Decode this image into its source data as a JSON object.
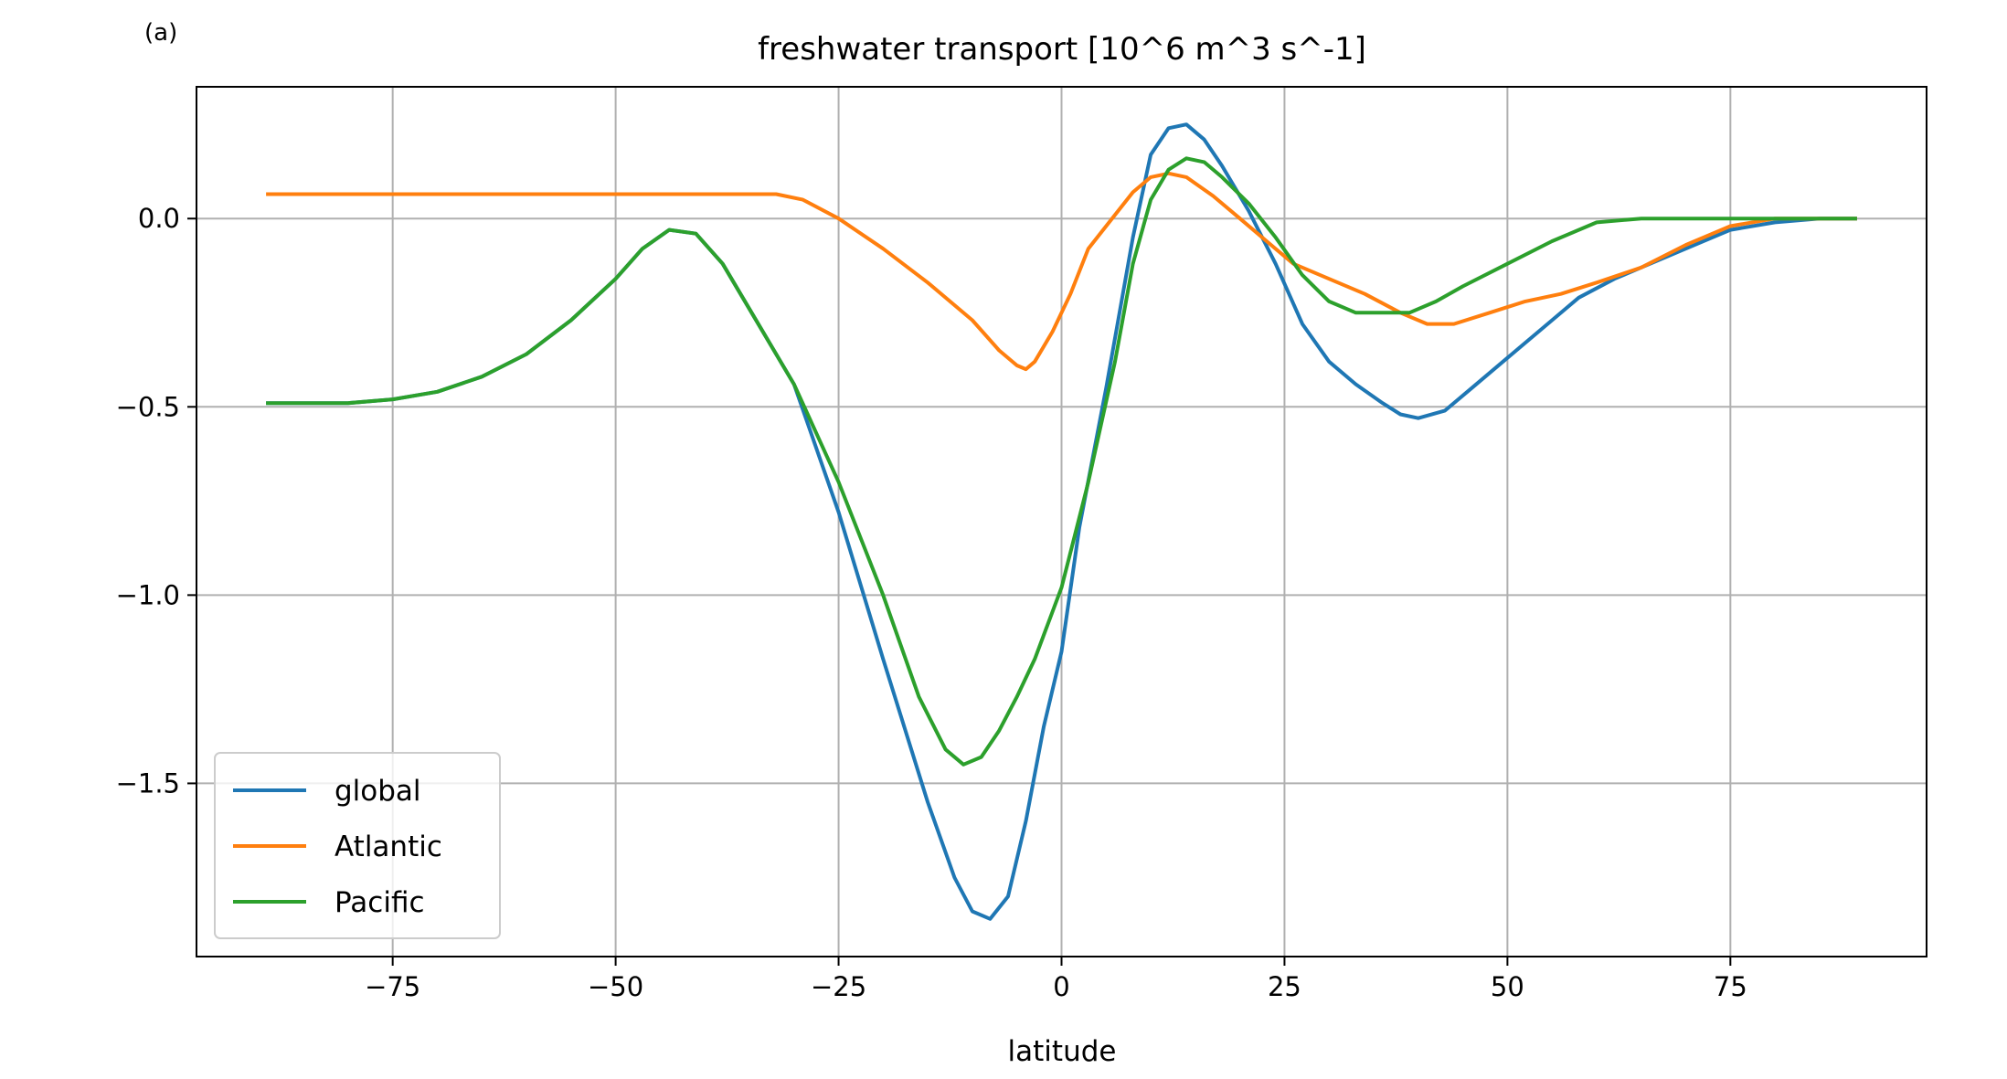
{
  "chart_data": {
    "type": "line",
    "panel_label": "(a)",
    "title": "freshwater transport [10^6 m^3 s^-1]",
    "xlabel": "latitude",
    "ylabel": "",
    "xlim": [
      -97,
      97
    ],
    "ylim": [
      -1.96,
      0.35
    ],
    "x_ticks": [
      -75,
      -50,
      -25,
      0,
      25,
      50,
      75
    ],
    "x_tick_labels": [
      "−75",
      "−50",
      "−25",
      "0",
      "25",
      "50",
      "75"
    ],
    "y_ticks": [
      0.0,
      -0.5,
      -1.0,
      -1.5
    ],
    "y_tick_labels": [
      "0.0",
      "−0.5",
      "−1.0",
      "−1.5"
    ],
    "grid": true,
    "legend_position": "lower-left",
    "series": [
      {
        "name": "global",
        "color": "#1f77b4",
        "points": [
          [
            -89,
            -0.49
          ],
          [
            -80,
            -0.49
          ],
          [
            -75,
            -0.48
          ],
          [
            -70,
            -0.46
          ],
          [
            -65,
            -0.42
          ],
          [
            -60,
            -0.36
          ],
          [
            -55,
            -0.27
          ],
          [
            -50,
            -0.16
          ],
          [
            -47,
            -0.08
          ],
          [
            -44,
            -0.03
          ],
          [
            -41,
            -0.04
          ],
          [
            -38,
            -0.12
          ],
          [
            -35,
            -0.24
          ],
          [
            -30,
            -0.44
          ],
          [
            -25,
            -0.78
          ],
          [
            -20,
            -1.17
          ],
          [
            -15,
            -1.55
          ],
          [
            -12,
            -1.75
          ],
          [
            -10,
            -1.84
          ],
          [
            -8,
            -1.86
          ],
          [
            -6,
            -1.8
          ],
          [
            -4,
            -1.6
          ],
          [
            -2,
            -1.35
          ],
          [
            0,
            -1.15
          ],
          [
            2,
            -0.82
          ],
          [
            5,
            -0.45
          ],
          [
            8,
            -0.05
          ],
          [
            10,
            0.17
          ],
          [
            12,
            0.24
          ],
          [
            14,
            0.25
          ],
          [
            16,
            0.21
          ],
          [
            18,
            0.14
          ],
          [
            21,
            0.02
          ],
          [
            24,
            -0.12
          ],
          [
            27,
            -0.28
          ],
          [
            30,
            -0.38
          ],
          [
            33,
            -0.44
          ],
          [
            36,
            -0.49
          ],
          [
            38,
            -0.52
          ],
          [
            40,
            -0.53
          ],
          [
            43,
            -0.51
          ],
          [
            46,
            -0.45
          ],
          [
            50,
            -0.37
          ],
          [
            55,
            -0.27
          ],
          [
            58,
            -0.21
          ],
          [
            62,
            -0.16
          ],
          [
            66,
            -0.12
          ],
          [
            70,
            -0.08
          ],
          [
            75,
            -0.03
          ],
          [
            80,
            -0.01
          ],
          [
            85,
            0.0
          ],
          [
            89,
            0.0
          ]
        ]
      },
      {
        "name": "Atlantic",
        "color": "#ff7f0e",
        "points": [
          [
            -89,
            0.065
          ],
          [
            -70,
            0.065
          ],
          [
            -50,
            0.065
          ],
          [
            -35,
            0.065
          ],
          [
            -32,
            0.065
          ],
          [
            -29,
            0.05
          ],
          [
            -25,
            0.0
          ],
          [
            -20,
            -0.08
          ],
          [
            -15,
            -0.17
          ],
          [
            -10,
            -0.27
          ],
          [
            -7,
            -0.35
          ],
          [
            -5,
            -0.39
          ],
          [
            -4,
            -0.4
          ],
          [
            -3,
            -0.38
          ],
          [
            -1,
            -0.3
          ],
          [
            1,
            -0.2
          ],
          [
            3,
            -0.08
          ],
          [
            5,
            -0.02
          ],
          [
            8,
            0.07
          ],
          [
            10,
            0.11
          ],
          [
            12,
            0.12
          ],
          [
            14,
            0.11
          ],
          [
            17,
            0.06
          ],
          [
            20,
            0.0
          ],
          [
            23,
            -0.06
          ],
          [
            26,
            -0.12
          ],
          [
            30,
            -0.16
          ],
          [
            34,
            -0.2
          ],
          [
            38,
            -0.25
          ],
          [
            41,
            -0.28
          ],
          [
            44,
            -0.28
          ],
          [
            48,
            -0.25
          ],
          [
            52,
            -0.22
          ],
          [
            56,
            -0.2
          ],
          [
            60,
            -0.17
          ],
          [
            65,
            -0.13
          ],
          [
            70,
            -0.07
          ],
          [
            75,
            -0.02
          ],
          [
            80,
            0.0
          ],
          [
            89,
            0.0
          ]
        ]
      },
      {
        "name": "Pacific",
        "color": "#2ca02c",
        "points": [
          [
            -89,
            -0.49
          ],
          [
            -80,
            -0.49
          ],
          [
            -75,
            -0.48
          ],
          [
            -70,
            -0.46
          ],
          [
            -65,
            -0.42
          ],
          [
            -60,
            -0.36
          ],
          [
            -55,
            -0.27
          ],
          [
            -50,
            -0.16
          ],
          [
            -47,
            -0.08
          ],
          [
            -44,
            -0.03
          ],
          [
            -41,
            -0.04
          ],
          [
            -38,
            -0.12
          ],
          [
            -35,
            -0.24
          ],
          [
            -30,
            -0.44
          ],
          [
            -25,
            -0.7
          ],
          [
            -20,
            -1.0
          ],
          [
            -16,
            -1.27
          ],
          [
            -13,
            -1.41
          ],
          [
            -11,
            -1.45
          ],
          [
            -9,
            -1.43
          ],
          [
            -7,
            -1.36
          ],
          [
            -5,
            -1.27
          ],
          [
            -3,
            -1.17
          ],
          [
            0,
            -0.98
          ],
          [
            3,
            -0.7
          ],
          [
            6,
            -0.38
          ],
          [
            8,
            -0.12
          ],
          [
            10,
            0.05
          ],
          [
            12,
            0.13
          ],
          [
            14,
            0.16
          ],
          [
            16,
            0.15
          ],
          [
            18,
            0.11
          ],
          [
            21,
            0.04
          ],
          [
            24,
            -0.05
          ],
          [
            27,
            -0.15
          ],
          [
            30,
            -0.22
          ],
          [
            33,
            -0.25
          ],
          [
            36,
            -0.25
          ],
          [
            39,
            -0.25
          ],
          [
            42,
            -0.22
          ],
          [
            45,
            -0.18
          ],
          [
            50,
            -0.12
          ],
          [
            55,
            -0.06
          ],
          [
            60,
            -0.01
          ],
          [
            65,
            0.0
          ],
          [
            75,
            0.0
          ],
          [
            89,
            0.0
          ]
        ]
      }
    ]
  }
}
